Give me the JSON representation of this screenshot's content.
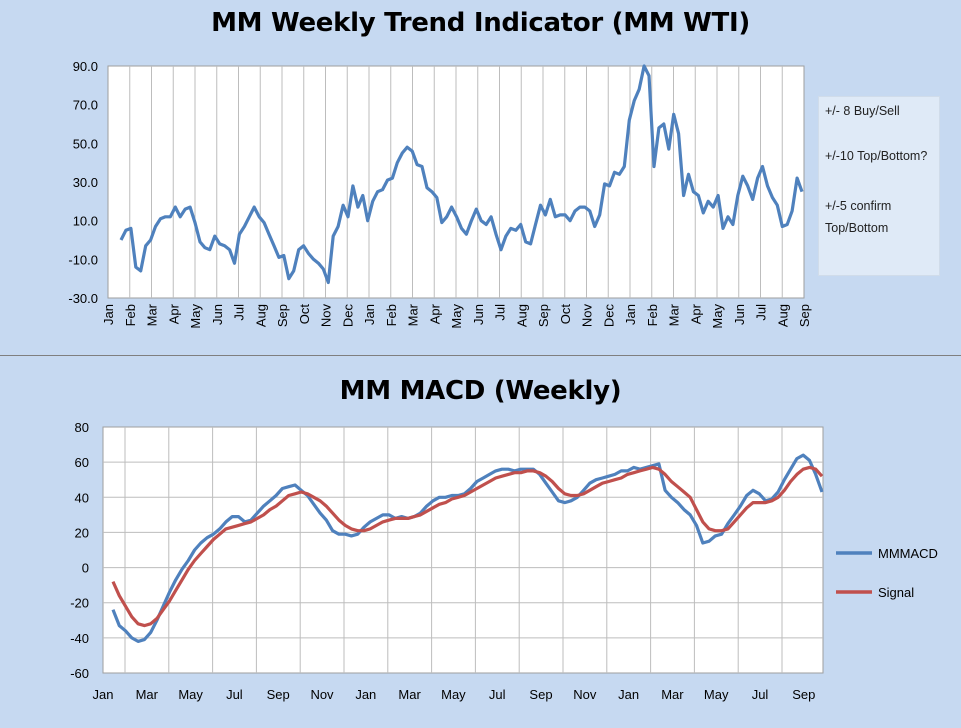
{
  "chart_data": [
    {
      "type": "line",
      "title": "MM Weekly Trend Indicator (MM WTI)",
      "ylim": [
        -30,
        90
      ],
      "yticks": [
        "90.0",
        "70.0",
        "50.0",
        "30.0",
        "10.0",
        "-10.0",
        "-30.0"
      ],
      "xtick_labels": [
        "Jan",
        "Feb",
        "Mar",
        "Apr",
        "May",
        "Jun",
        "Jul",
        "Aug",
        "Sep",
        "Oct",
        "Nov",
        "Dec",
        "Jan",
        "Feb",
        "Mar",
        "Apr",
        "May",
        "Jun",
        "Jul",
        "Aug",
        "Sep",
        "Oct",
        "Nov",
        "Dec",
        "Jan",
        "Feb",
        "Mar",
        "Apr",
        "May",
        "Jun",
        "Jul",
        "Aug",
        "Sep"
      ],
      "grid": "vertical",
      "series": [
        {
          "color": "#4f81bd",
          "values": [
            0,
            5,
            6,
            -14,
            -16,
            -3,
            0,
            7,
            11,
            12,
            12,
            17,
            12,
            16,
            17,
            9,
            -1,
            -4,
            -5,
            2,
            -2,
            -3,
            -5,
            -12,
            3,
            7,
            12,
            17,
            12,
            9,
            3,
            -3,
            -9,
            -8,
            -20,
            -16,
            -5,
            -3,
            -7,
            -10,
            -12,
            -15,
            -22,
            2,
            7,
            18,
            12,
            28,
            17,
            23,
            10,
            20,
            25,
            26,
            31,
            32,
            40,
            45,
            48,
            46,
            39,
            38,
            27,
            25,
            22,
            9,
            12,
            17,
            12,
            6,
            3,
            10,
            16,
            10,
            8,
            12,
            3,
            -5,
            2,
            6,
            5,
            8,
            -1,
            -2,
            8,
            18,
            13,
            21,
            12,
            13,
            13,
            10,
            15,
            17,
            17,
            15,
            7,
            13,
            29,
            28,
            35,
            34,
            38,
            62,
            72,
            78,
            90,
            85,
            38,
            58,
            60,
            47,
            65,
            55,
            23,
            34,
            25,
            23,
            14,
            20,
            17,
            23,
            6,
            12,
            8,
            23,
            33,
            28,
            21,
            32,
            38,
            28,
            22,
            18,
            7,
            8,
            15,
            32,
            25
          ]
        }
      ],
      "notes": [
        "+/- 8 Buy/Sell",
        "+/-10 Top/Bottom?",
        "+/-5 confirm Top/Bottom"
      ]
    },
    {
      "type": "line",
      "title": "MM MACD (Weekly)",
      "ylim": [
        -60,
        80
      ],
      "yticks": [
        "80",
        "60",
        "40",
        "20",
        "0",
        "-20",
        "-40",
        "-60"
      ],
      "xtick_labels": [
        "Jan",
        "Mar",
        "May",
        "Jul",
        "Sep",
        "Nov",
        "Jan",
        "Mar",
        "May",
        "Jul",
        "Sep",
        "Nov",
        "Jan",
        "Mar",
        "May",
        "Jul",
        "Sep"
      ],
      "grid": "both",
      "series": [
        {
          "name": "MMMACD",
          "color": "#4f81bd",
          "values": [
            -24,
            -33,
            -36,
            -40,
            -42,
            -41,
            -37,
            -30,
            -22,
            -14,
            -7,
            -1,
            4,
            10,
            14,
            17,
            19,
            22,
            26,
            29,
            29,
            26,
            27,
            31,
            35,
            38,
            41,
            45,
            46,
            47,
            44,
            41,
            36,
            31,
            27,
            21,
            19,
            19,
            18,
            19,
            23,
            26,
            28,
            30,
            30,
            28,
            29,
            28,
            29,
            31,
            35,
            38,
            40,
            40,
            41,
            41,
            42,
            45,
            49,
            51,
            53,
            55,
            56,
            56,
            55,
            56,
            56,
            56,
            53,
            48,
            43,
            38,
            37,
            38,
            40,
            44,
            48,
            50,
            51,
            52,
            53,
            55,
            55,
            57,
            56,
            57,
            58,
            59,
            44,
            40,
            37,
            33,
            30,
            24,
            14,
            15,
            18,
            19,
            25,
            30,
            35,
            41,
            44,
            42,
            38,
            39,
            43,
            50,
            56,
            62,
            64,
            61,
            53,
            43
          ]
        },
        {
          "name": "Signal",
          "color": "#c0504d",
          "values": [
            -8,
            -16,
            -22,
            -28,
            -32,
            -33,
            -32,
            -29,
            -24,
            -19,
            -13,
            -7,
            -1,
            4,
            8,
            12,
            16,
            19,
            22,
            23,
            24,
            25,
            26,
            28,
            30,
            33,
            35,
            38,
            41,
            42,
            43,
            42,
            40,
            38,
            35,
            31,
            27,
            24,
            22,
            21,
            21,
            22,
            24,
            26,
            27,
            28,
            28,
            28,
            29,
            30,
            32,
            34,
            36,
            37,
            39,
            40,
            41,
            43,
            45,
            47,
            49,
            51,
            52,
            53,
            54,
            54,
            55,
            55,
            54,
            52,
            49,
            45,
            42,
            41,
            41,
            42,
            44,
            46,
            48,
            49,
            50,
            51,
            53,
            54,
            55,
            56,
            57,
            56,
            53,
            49,
            46,
            43,
            40,
            33,
            26,
            22,
            21,
            21,
            22,
            26,
            30,
            34,
            37,
            37,
            37,
            38,
            40,
            44,
            49,
            53,
            56,
            57,
            56,
            52
          ]
        }
      ]
    }
  ]
}
